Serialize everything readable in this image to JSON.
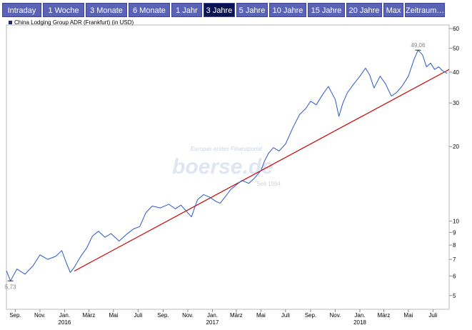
{
  "tabs": [
    {
      "label": "Intraday",
      "active": false
    },
    {
      "label": "1 Woche",
      "active": false
    },
    {
      "label": "3 Monate",
      "active": false
    },
    {
      "label": "6 Monate",
      "active": false
    },
    {
      "label": "1 Jahr",
      "active": false
    },
    {
      "label": "3 Jahre",
      "active": true
    },
    {
      "label": "5 Jahre",
      "active": false
    },
    {
      "label": "10 Jahre",
      "active": false
    },
    {
      "label": "15 Jahre",
      "active": false
    },
    {
      "label": "20 Jahre",
      "active": false
    },
    {
      "label": "Max",
      "active": false
    },
    {
      "label": "Zeitraum…",
      "active": false
    }
  ],
  "colors": {
    "tab_bg": "#5a63b6",
    "tab_active_bg": "#0b1452",
    "line": "#2a58c8",
    "trend": "#cc0000"
  },
  "watermark": {
    "line1": "Europas erstes Finanzportal",
    "logo": "boerse.de",
    "line3": "Seit 1994"
  },
  "chart_data": {
    "type": "line",
    "legend": "China Lodging Group ADR (Frankfurt) (in USD)",
    "y_scale": "log",
    "ylim": [
      4.4,
      62
    ],
    "y_ticks": [
      5,
      6,
      7,
      8,
      9,
      10,
      20,
      30,
      40,
      50,
      60
    ],
    "x_range": [
      "2015-08-10",
      "2018-08-10"
    ],
    "x_ticks": [
      {
        "date": "2015-09-01",
        "label": "Sep.",
        "year": "",
        "year_label": ""
      },
      {
        "date": "2015-11-01",
        "label": "Nov.",
        "year": "",
        "year_label": ""
      },
      {
        "date": "2016-01-01",
        "label": "Jan.",
        "year": "2016",
        "year_label": "2016"
      },
      {
        "date": "2016-03-01",
        "label": "März",
        "year": "",
        "year_label": ""
      },
      {
        "date": "2016-05-01",
        "label": "Mai",
        "year": "",
        "year_label": ""
      },
      {
        "date": "2016-07-01",
        "label": "Juli",
        "year": "",
        "year_label": ""
      },
      {
        "date": "2016-09-01",
        "label": "Sep.",
        "year": "",
        "year_label": ""
      },
      {
        "date": "2016-11-01",
        "label": "Nov.",
        "year": "",
        "year_label": ""
      },
      {
        "date": "2017-01-01",
        "label": "Jan.",
        "year": "2017",
        "year_label": "2017"
      },
      {
        "date": "2017-03-01",
        "label": "März",
        "year": "",
        "year_label": ""
      },
      {
        "date": "2017-05-01",
        "label": "Mai",
        "year": "",
        "year_label": ""
      },
      {
        "date": "2017-07-01",
        "label": "Juli",
        "year": "",
        "year_label": ""
      },
      {
        "date": "2017-09-01",
        "label": "Sep.",
        "year": "",
        "year_label": ""
      },
      {
        "date": "2017-11-01",
        "label": "Nov.",
        "year": "",
        "year_label": ""
      },
      {
        "date": "2018-01-01",
        "label": "Jan.",
        "year": "2018",
        "year_label": "2018"
      },
      {
        "date": "2018-03-01",
        "label": "März",
        "year": "",
        "year_label": ""
      },
      {
        "date": "2018-05-01",
        "label": "Mai",
        "year": "",
        "year_label": ""
      },
      {
        "date": "2018-07-01",
        "label": "Juli",
        "year": "",
        "year_label": ""
      }
    ],
    "series": [
      {
        "points": [
          [
            "2015-08-10",
            6.3
          ],
          [
            "2015-08-20",
            5.73
          ],
          [
            "2015-09-05",
            6.4
          ],
          [
            "2015-09-25",
            6.1
          ],
          [
            "2015-10-15",
            6.6
          ],
          [
            "2015-11-01",
            7.3
          ],
          [
            "2015-11-20",
            7.0
          ],
          [
            "2015-12-10",
            7.2
          ],
          [
            "2015-12-25",
            7.6
          ],
          [
            "2016-01-05",
            6.8
          ],
          [
            "2016-01-15",
            6.2
          ],
          [
            "2016-01-25",
            6.5
          ],
          [
            "2016-02-10",
            7.2
          ],
          [
            "2016-02-25",
            7.8
          ],
          [
            "2016-03-10",
            8.7
          ],
          [
            "2016-03-25",
            9.1
          ],
          [
            "2016-04-10",
            8.6
          ],
          [
            "2016-04-25",
            8.9
          ],
          [
            "2016-05-15",
            8.3
          ],
          [
            "2016-06-01",
            8.8
          ],
          [
            "2016-06-20",
            9.3
          ],
          [
            "2016-07-05",
            9.5
          ],
          [
            "2016-07-20",
            10.8
          ],
          [
            "2016-08-05",
            11.5
          ],
          [
            "2016-08-25",
            11.3
          ],
          [
            "2016-09-15",
            11.7
          ],
          [
            "2016-10-01",
            11.2
          ],
          [
            "2016-10-15",
            11.6
          ],
          [
            "2016-11-01",
            10.8
          ],
          [
            "2016-11-10",
            10.4
          ],
          [
            "2016-11-25",
            12.2
          ],
          [
            "2016-12-10",
            12.8
          ],
          [
            "2016-12-25",
            12.5
          ],
          [
            "2017-01-10",
            12.0
          ],
          [
            "2017-01-20",
            11.8
          ],
          [
            "2017-02-01",
            12.5
          ],
          [
            "2017-02-15",
            13.4
          ],
          [
            "2017-03-01",
            14.0
          ],
          [
            "2017-03-15",
            14.6
          ],
          [
            "2017-04-01",
            14.2
          ],
          [
            "2017-04-15",
            14.9
          ],
          [
            "2017-05-01",
            16.0
          ],
          [
            "2017-05-10",
            17.5
          ],
          [
            "2017-05-20",
            18.8
          ],
          [
            "2017-06-01",
            19.8
          ],
          [
            "2017-06-15",
            19.2
          ],
          [
            "2017-07-01",
            20.5
          ],
          [
            "2017-07-20",
            24.0
          ],
          [
            "2017-08-05",
            27.0
          ],
          [
            "2017-08-20",
            28.5
          ],
          [
            "2017-09-01",
            30.5
          ],
          [
            "2017-09-15",
            29.5
          ],
          [
            "2017-10-01",
            32.5
          ],
          [
            "2017-10-15",
            35.0
          ],
          [
            "2017-11-01",
            31.0
          ],
          [
            "2017-11-10",
            26.5
          ],
          [
            "2017-11-20",
            30.0
          ],
          [
            "2017-12-01",
            33.0
          ],
          [
            "2017-12-15",
            35.5
          ],
          [
            "2018-01-01",
            38.5
          ],
          [
            "2018-01-15",
            41.5
          ],
          [
            "2018-01-25",
            39.0
          ],
          [
            "2018-02-05",
            34.5
          ],
          [
            "2018-02-20",
            38.5
          ],
          [
            "2018-03-05",
            36.0
          ],
          [
            "2018-03-20",
            32.0
          ],
          [
            "2018-04-01",
            33.0
          ],
          [
            "2018-04-15",
            35.0
          ],
          [
            "2018-05-01",
            38.5
          ],
          [
            "2018-05-15",
            45.0
          ],
          [
            "2018-05-25",
            49.06
          ],
          [
            "2018-06-05",
            47.0
          ],
          [
            "2018-06-15",
            42.0
          ],
          [
            "2018-06-25",
            43.5
          ],
          [
            "2018-07-05",
            41.0
          ],
          [
            "2018-07-15",
            42.0
          ],
          [
            "2018-07-25",
            40.5
          ],
          [
            "2018-08-05",
            39.5
          ]
        ]
      }
    ],
    "trendline": {
      "from": [
        "2016-01-25",
        6.28
      ],
      "to": [
        "2018-08-10",
        41.0
      ]
    },
    "annotations": [
      {
        "date": "2018-05-25",
        "value": 49.06,
        "label": "49,06",
        "type": "max"
      },
      {
        "date": "2015-08-20",
        "value": 5.73,
        "label": "5,73",
        "type": "min"
      }
    ]
  }
}
